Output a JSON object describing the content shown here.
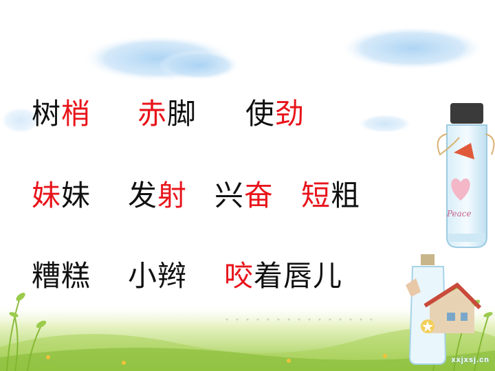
{
  "rows": [
    {
      "words": [
        {
          "pre": "树",
          "hl": "梢",
          "post": ""
        },
        {
          "pre": "",
          "hl": "赤",
          "post": "脚"
        },
        {
          "pre": "使",
          "hl": "劲",
          "post": ""
        }
      ]
    },
    {
      "words": [
        {
          "pre": "",
          "hl": "妹",
          "post": "妹"
        },
        {
          "pre": "发",
          "hl": "射",
          "post": ""
        },
        {
          "pre": "兴",
          "hl": "奋",
          "post": ""
        },
        {
          "pre": "",
          "hl": "短",
          "post": "粗"
        }
      ]
    },
    {
      "words": [
        {
          "pre": "糟糕",
          "hl": "",
          "post": ""
        },
        {
          "pre": "小辫",
          "hl": "",
          "post": ""
        },
        {
          "pre": "",
          "hl": "咬",
          "post": "着唇儿"
        }
      ]
    }
  ],
  "watermark": "xxjxsj.cn",
  "colors": {
    "highlight": "#e8141b",
    "text": "#111111",
    "sky": "#9fc9ec",
    "grass": "#8ec23f"
  },
  "decor": {
    "bottle_label": "Peace"
  }
}
